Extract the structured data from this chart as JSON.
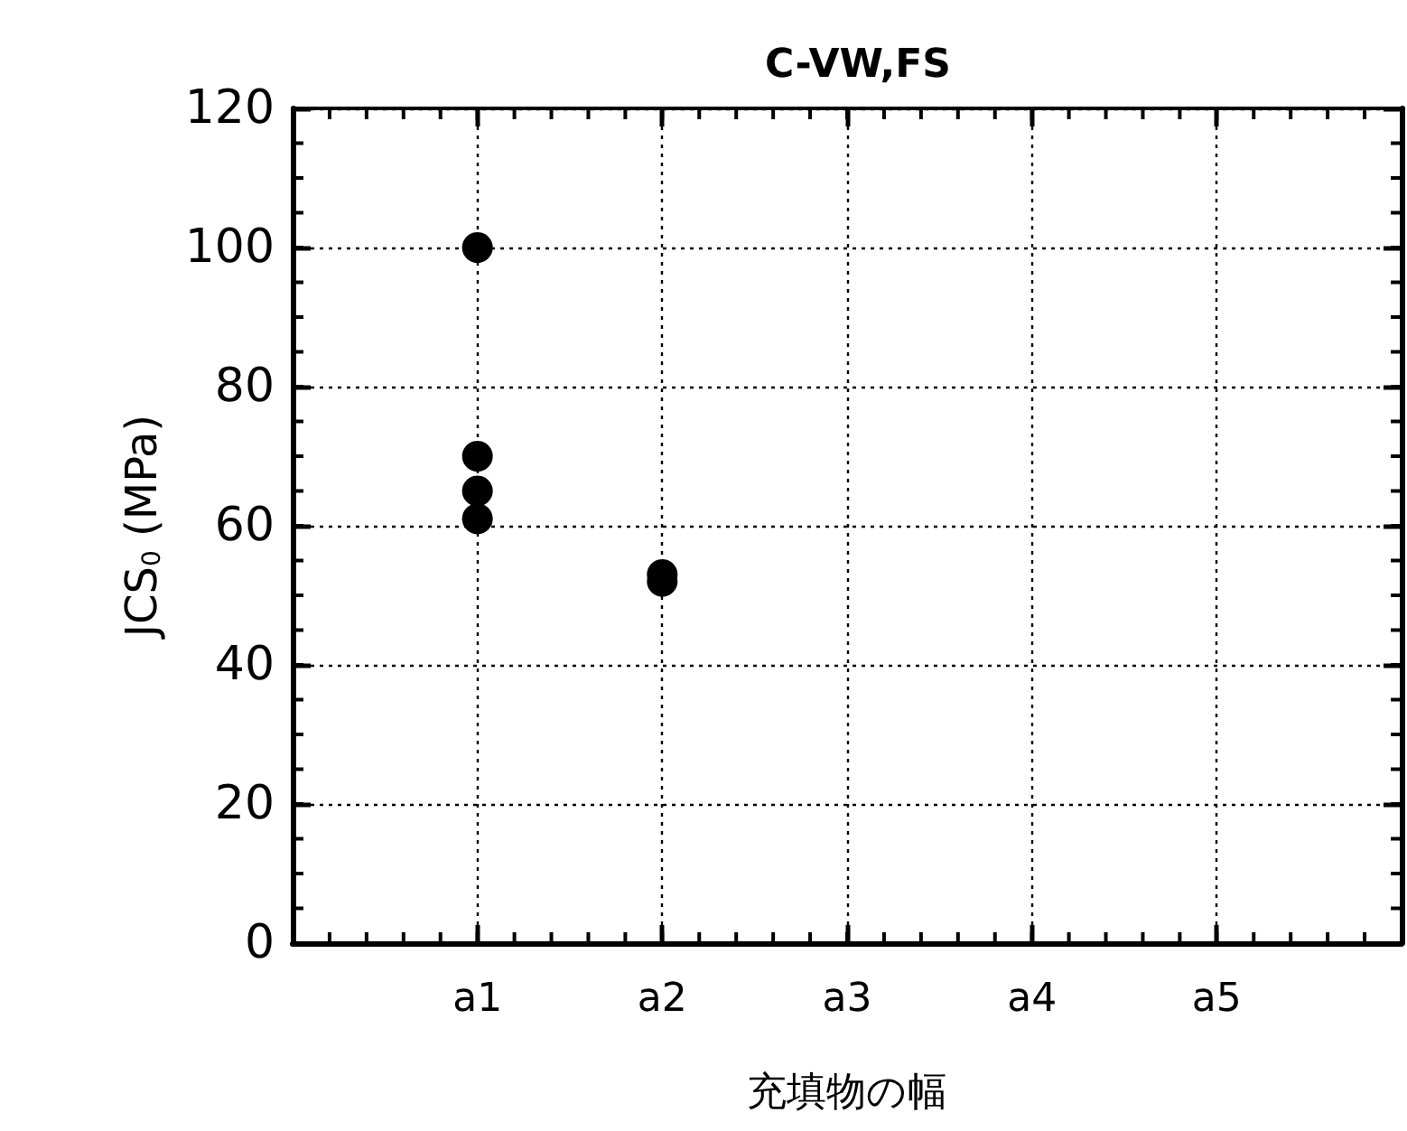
{
  "chart_data": {
    "type": "scatter",
    "title": "C-VW,FS",
    "xlabel": "充填物の幅",
    "ylabel": "JCS$_{0}$ (MPa)",
    "categories": [
      null,
      "a1",
      "a2",
      "a3",
      "a4",
      "a5",
      null
    ],
    "series": [
      {
        "color": "#000000",
        "x": [
          "a1",
          "a1",
          "a1",
          "a1",
          "a2",
          "a2"
        ],
        "values": [
          100,
          70,
          65,
          61,
          53,
          52
        ]
      }
    ],
    "ylim": [
      0,
      120
    ],
    "yticks": [
      0,
      20,
      40,
      60,
      80,
      100,
      120
    ],
    "grid": true,
    "marker": "circle"
  }
}
